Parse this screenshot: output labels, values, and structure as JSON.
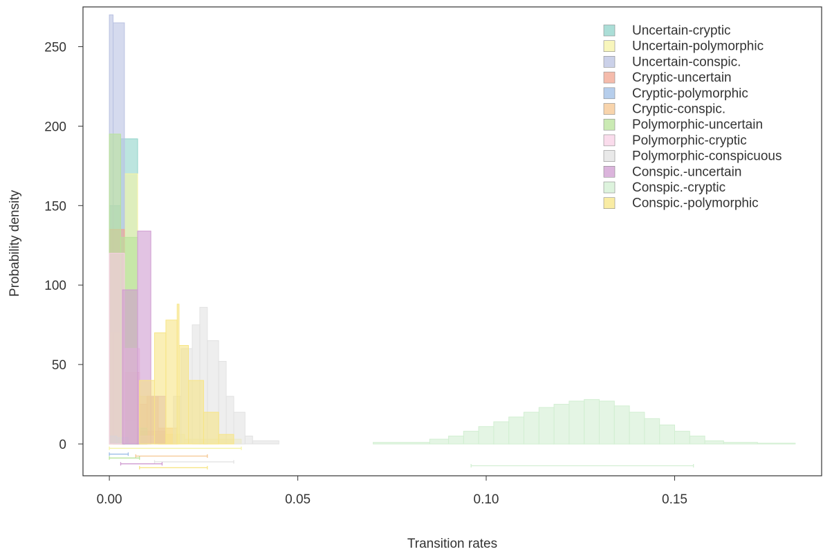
{
  "chart_data": {
    "type": "histogram",
    "xlabel": "Transition rates",
    "ylabel": "Probability density",
    "xlim": [
      -0.007,
      0.189
    ],
    "ylim": [
      -20,
      275
    ],
    "x_ticks": [
      0.0,
      0.05,
      0.1,
      0.15
    ],
    "x_tick_labels": [
      "0.00",
      "0.05",
      "0.10",
      "0.15"
    ],
    "y_ticks": [
      0,
      50,
      100,
      150,
      200,
      250
    ],
    "y_tick_labels": [
      "0",
      "50",
      "100",
      "150",
      "200",
      "250"
    ],
    "grid": false,
    "legend_position": "top-right",
    "series": [
      {
        "name": "Uncertain-cryptic",
        "color": "#8fd3c9",
        "bins": [
          [
            0.0,
            0.003,
            150
          ],
          [
            0.003,
            0.0075,
            192
          ],
          [
            0.0075,
            0.01,
            5
          ]
        ],
        "interval": null
      },
      {
        "name": "Uncertain-polymorphic",
        "color": "#f5f3a6",
        "bins": [
          [
            0.0,
            0.004,
            70
          ],
          [
            0.004,
            0.0075,
            170
          ],
          [
            0.0075,
            0.012,
            30
          ],
          [
            0.012,
            0.02,
            6
          ],
          [
            0.02,
            0.035,
            3
          ]
        ],
        "interval": [
          0.0,
          0.035
        ]
      },
      {
        "name": "Uncertain-conspic.",
        "color": "#b9c1e2",
        "bins": [
          [
            0.0,
            0.001,
            270
          ],
          [
            0.001,
            0.004,
            265
          ],
          [
            0.004,
            0.0075,
            15
          ]
        ],
        "interval": null
      },
      {
        "name": "Cryptic-uncertain",
        "color": "#f2a48f",
        "bins": [
          [
            0.0,
            0.004,
            135
          ],
          [
            0.004,
            0.008,
            45
          ],
          [
            0.008,
            0.015,
            8
          ]
        ],
        "interval": null
      },
      {
        "name": "Cryptic-polymorphic",
        "color": "#9dbde6",
        "bins": [
          [
            0.0,
            0.002,
            5
          ],
          [
            0.002,
            0.005,
            4
          ]
        ],
        "interval": [
          0.0,
          0.005
        ]
      },
      {
        "name": "Cryptic-conspic.",
        "color": "#f5c690",
        "bins": [
          [
            0.007,
            0.01,
            25
          ],
          [
            0.01,
            0.013,
            30
          ],
          [
            0.013,
            0.018,
            10
          ]
        ],
        "interval": [
          0.007,
          0.026
        ]
      },
      {
        "name": "Polymorphic-uncertain",
        "color": "#b8e39a",
        "bins": [
          [
            0.0,
            0.003,
            195
          ],
          [
            0.003,
            0.0075,
            130
          ],
          [
            0.0075,
            0.01,
            10
          ]
        ],
        "interval": [
          0.0,
          0.008
        ]
      },
      {
        "name": "Polymorphic-cryptic",
        "color": "#f8d0e6",
        "bins": [
          [
            0.0,
            0.004,
            120
          ],
          [
            0.004,
            0.008,
            60
          ],
          [
            0.008,
            0.012,
            5
          ]
        ],
        "interval": null
      },
      {
        "name": "Polymorphic-conspicuous",
        "color": "#e2e2e2",
        "bins": [
          [
            0.017,
            0.019,
            30
          ],
          [
            0.019,
            0.022,
            60
          ],
          [
            0.022,
            0.024,
            75
          ],
          [
            0.024,
            0.026,
            86
          ],
          [
            0.026,
            0.029,
            65
          ],
          [
            0.029,
            0.031,
            52
          ],
          [
            0.031,
            0.033,
            30
          ],
          [
            0.033,
            0.036,
            20
          ],
          [
            0.036,
            0.038,
            5
          ],
          [
            0.038,
            0.045,
            2
          ]
        ],
        "interval": [
          0.012,
          0.033
        ]
      },
      {
        "name": "Conspic.-uncertain",
        "color": "#cf9bd0",
        "bins": [
          [
            0.0035,
            0.0075,
            97
          ],
          [
            0.0075,
            0.011,
            134
          ],
          [
            0.011,
            0.015,
            30
          ]
        ],
        "interval": [
          0.003,
          0.014
        ]
      },
      {
        "name": "Conspic.-cryptic",
        "color": "#d2efd2",
        "bins": [
          [
            0.07,
            0.085,
            1
          ],
          [
            0.085,
            0.09,
            3
          ],
          [
            0.09,
            0.094,
            5
          ],
          [
            0.094,
            0.098,
            8
          ],
          [
            0.098,
            0.102,
            11
          ],
          [
            0.102,
            0.106,
            14
          ],
          [
            0.106,
            0.11,
            17
          ],
          [
            0.11,
            0.114,
            20
          ],
          [
            0.114,
            0.118,
            23
          ],
          [
            0.118,
            0.122,
            25
          ],
          [
            0.122,
            0.126,
            27
          ],
          [
            0.126,
            0.13,
            28
          ],
          [
            0.13,
            0.134,
            27
          ],
          [
            0.134,
            0.138,
            24
          ],
          [
            0.138,
            0.142,
            20
          ],
          [
            0.142,
            0.146,
            16
          ],
          [
            0.146,
            0.15,
            12
          ],
          [
            0.15,
            0.154,
            8
          ],
          [
            0.154,
            0.158,
            5
          ],
          [
            0.158,
            0.163,
            2
          ],
          [
            0.163,
            0.172,
            1
          ],
          [
            0.172,
            0.182,
            0.5
          ]
        ],
        "interval": [
          0.096,
          0.155
        ]
      },
      {
        "name": "Conspic.-polymorphic",
        "color": "#f7e586",
        "bins": [
          [
            0.008,
            0.012,
            40
          ],
          [
            0.012,
            0.015,
            70
          ],
          [
            0.015,
            0.018,
            78
          ],
          [
            0.018,
            0.0185,
            88
          ],
          [
            0.0185,
            0.021,
            62
          ],
          [
            0.021,
            0.025,
            40
          ],
          [
            0.025,
            0.029,
            20
          ],
          [
            0.029,
            0.033,
            6
          ]
        ],
        "interval": [
          0.008,
          0.026
        ]
      }
    ]
  }
}
